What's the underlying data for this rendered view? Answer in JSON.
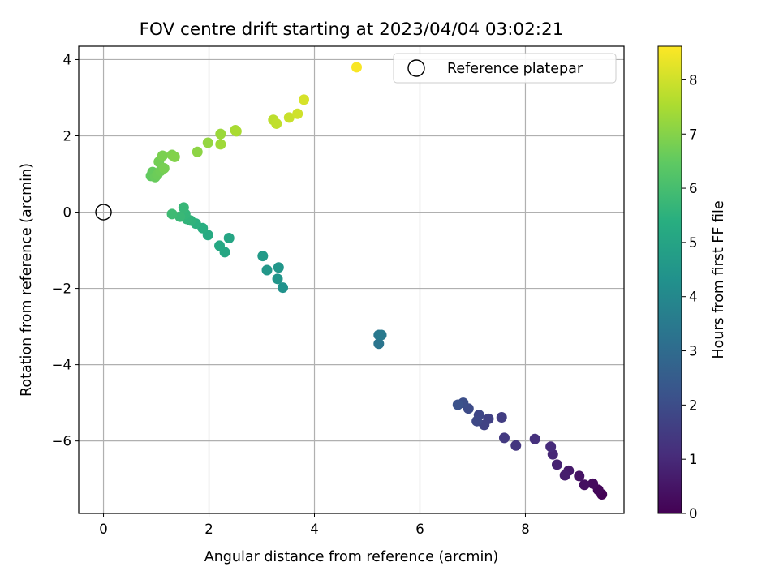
{
  "chart_data": {
    "type": "scatter",
    "title": "FOV centre drift starting at 2023/04/04 03:02:21",
    "xlabel": "Angular distance from reference (arcmin)",
    "ylabel": "Rotation from reference (arcmin)",
    "colorbar_label": "Hours from first FF file",
    "xlim": [
      -0.47,
      9.87
    ],
    "ylim": [
      -7.9,
      4.35
    ],
    "x_ticks": [
      0,
      2,
      4,
      6,
      8
    ],
    "x_tick_labels": [
      "0",
      "2",
      "4",
      "6",
      "8"
    ],
    "y_ticks": [
      -6,
      -4,
      -2,
      0,
      2,
      4
    ],
    "y_tick_labels": [
      "−6",
      "−4",
      "−2",
      "0",
      "2",
      "4"
    ],
    "colorbar_range": [
      0,
      8.62
    ],
    "colorbar_ticks": [
      0,
      1,
      2,
      3,
      4,
      5,
      6,
      7,
      8
    ],
    "colorbar_tick_labels": [
      "0",
      "1",
      "2",
      "3",
      "4",
      "5",
      "6",
      "7",
      "8"
    ],
    "colormap": "viridis",
    "grid": true,
    "legend": {
      "position": "top-right",
      "entries": [
        "Reference platepar"
      ]
    },
    "reference_point": {
      "x": 0,
      "y": 0,
      "label": "Reference platepar"
    },
    "points": [
      {
        "x": 9.45,
        "y": -7.4,
        "c": 0.05
      },
      {
        "x": 9.38,
        "y": -7.28,
        "c": 0.15
      },
      {
        "x": 9.28,
        "y": -7.12,
        "c": 0.25
      },
      {
        "x": 9.12,
        "y": -7.15,
        "c": 0.35
      },
      {
        "x": 9.02,
        "y": -6.92,
        "c": 0.45
      },
      {
        "x": 8.82,
        "y": -6.78,
        "c": 0.6
      },
      {
        "x": 8.75,
        "y": -6.9,
        "c": 0.7
      },
      {
        "x": 8.6,
        "y": -6.62,
        "c": 0.8
      },
      {
        "x": 8.52,
        "y": -6.35,
        "c": 0.95
      },
      {
        "x": 8.48,
        "y": -6.15,
        "c": 1.05
      },
      {
        "x": 8.18,
        "y": -5.95,
        "c": 1.2
      },
      {
        "x": 7.82,
        "y": -6.12,
        "c": 1.35
      },
      {
        "x": 7.6,
        "y": -5.92,
        "c": 1.45
      },
      {
        "x": 7.55,
        "y": -5.38,
        "c": 1.55
      },
      {
        "x": 7.3,
        "y": -5.42,
        "c": 1.65
      },
      {
        "x": 7.22,
        "y": -5.58,
        "c": 1.7
      },
      {
        "x": 7.12,
        "y": -5.32,
        "c": 1.8
      },
      {
        "x": 7.08,
        "y": -5.48,
        "c": 1.85
      },
      {
        "x": 6.92,
        "y": -5.15,
        "c": 1.95
      },
      {
        "x": 6.82,
        "y": -5.0,
        "c": 2.05
      },
      {
        "x": 6.72,
        "y": -5.05,
        "c": 2.15
      },
      {
        "x": 5.22,
        "y": -3.45,
        "c": 3.35
      },
      {
        "x": 5.22,
        "y": -3.22,
        "c": 3.45
      },
      {
        "x": 5.27,
        "y": -3.22,
        "c": 3.5
      },
      {
        "x": 3.4,
        "y": -1.98,
        "c": 4.35
      },
      {
        "x": 3.3,
        "y": -1.75,
        "c": 4.45
      },
      {
        "x": 3.32,
        "y": -1.45,
        "c": 4.5
      },
      {
        "x": 3.1,
        "y": -1.52,
        "c": 4.55
      },
      {
        "x": 3.02,
        "y": -1.15,
        "c": 4.65
      },
      {
        "x": 2.38,
        "y": -0.68,
        "c": 5.05
      },
      {
        "x": 2.3,
        "y": -1.05,
        "c": 5.1
      },
      {
        "x": 2.2,
        "y": -0.88,
        "c": 5.15
      },
      {
        "x": 1.98,
        "y": -0.6,
        "c": 5.25
      },
      {
        "x": 1.88,
        "y": -0.42,
        "c": 5.35
      },
      {
        "x": 1.75,
        "y": -0.3,
        "c": 5.45
      },
      {
        "x": 1.65,
        "y": -0.22,
        "c": 5.55
      },
      {
        "x": 1.58,
        "y": -0.18,
        "c": 5.6
      },
      {
        "x": 1.55,
        "y": -0.05,
        "c": 5.65
      },
      {
        "x": 1.52,
        "y": 0.12,
        "c": 5.7
      },
      {
        "x": 1.45,
        "y": -0.12,
        "c": 5.75
      },
      {
        "x": 1.3,
        "y": -0.05,
        "c": 5.85
      },
      {
        "x": 0.9,
        "y": 0.95,
        "c": 6.5
      },
      {
        "x": 0.93,
        "y": 1.05,
        "c": 6.55
      },
      {
        "x": 0.98,
        "y": 0.92,
        "c": 6.6
      },
      {
        "x": 1.02,
        "y": 0.98,
        "c": 6.65
      },
      {
        "x": 1.08,
        "y": 1.08,
        "c": 6.7
      },
      {
        "x": 1.05,
        "y": 1.32,
        "c": 6.75
      },
      {
        "x": 1.15,
        "y": 1.15,
        "c": 6.8
      },
      {
        "x": 1.12,
        "y": 1.48,
        "c": 6.85
      },
      {
        "x": 1.3,
        "y": 1.5,
        "c": 6.9
      },
      {
        "x": 1.35,
        "y": 1.45,
        "c": 6.95
      },
      {
        "x": 1.78,
        "y": 1.58,
        "c": 7.1
      },
      {
        "x": 1.98,
        "y": 1.82,
        "c": 7.2
      },
      {
        "x": 2.22,
        "y": 2.05,
        "c": 7.3
      },
      {
        "x": 2.22,
        "y": 1.78,
        "c": 7.35
      },
      {
        "x": 2.5,
        "y": 2.15,
        "c": 7.45
      },
      {
        "x": 2.52,
        "y": 2.12,
        "c": 7.5
      },
      {
        "x": 3.22,
        "y": 2.42,
        "c": 7.75
      },
      {
        "x": 3.28,
        "y": 2.32,
        "c": 7.8
      },
      {
        "x": 3.52,
        "y": 2.48,
        "c": 7.9
      },
      {
        "x": 3.68,
        "y": 2.58,
        "c": 8.0
      },
      {
        "x": 3.8,
        "y": 2.95,
        "c": 8.1
      },
      {
        "x": 4.8,
        "y": 3.8,
        "c": 8.55
      }
    ]
  }
}
